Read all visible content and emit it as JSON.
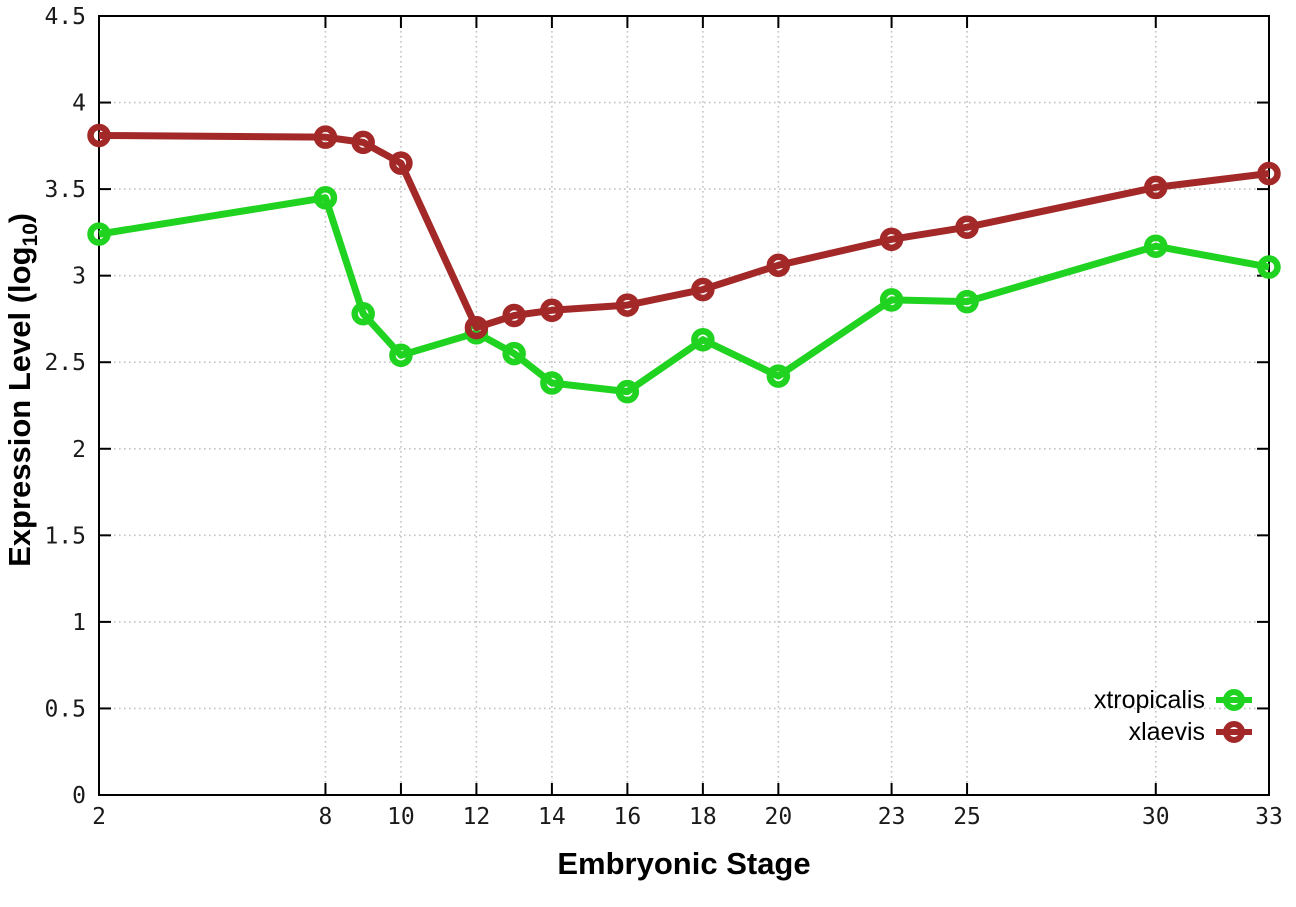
{
  "chart_data": {
    "type": "line",
    "title": "",
    "xlabel": "Embryonic Stage",
    "ylabel": {
      "main": "Expression Level (log",
      "sub": "10",
      "close": ")"
    },
    "xlim": [
      2,
      33
    ],
    "ylim": [
      0,
      4.5
    ],
    "x": [
      2,
      8,
      9,
      10,
      12,
      13,
      14,
      16,
      18,
      20,
      23,
      25,
      30,
      33
    ],
    "xticks": [
      2,
      8,
      10,
      12,
      14,
      16,
      18,
      20,
      23,
      25,
      30,
      33
    ],
    "xtick_labels": [
      "2",
      "8",
      "10",
      "12",
      "14",
      "16",
      "18",
      "20",
      "23",
      "25",
      "30",
      "33"
    ],
    "yticks": [
      0,
      0.5,
      1,
      1.5,
      2,
      2.5,
      3,
      3.5,
      4,
      4.5
    ],
    "ytick_labels": [
      "0",
      "0.5",
      "1",
      "1.5",
      "2",
      "2.5",
      "3",
      "3.5",
      "4",
      "4.5"
    ],
    "grid": true,
    "grid_style": "dotted",
    "legend_position": "bottom-right",
    "marker": "open-circle",
    "series": [
      {
        "name": "xtropicalis",
        "color": "#20d320",
        "values": [
          3.24,
          3.45,
          2.78,
          2.54,
          2.67,
          2.55,
          2.38,
          2.33,
          2.63,
          2.42,
          2.86,
          2.85,
          3.17,
          3.05
        ]
      },
      {
        "name": "xlaevis",
        "color": "#a32828",
        "values": [
          3.81,
          3.8,
          3.77,
          3.65,
          2.7,
          2.77,
          2.8,
          2.83,
          2.92,
          3.06,
          3.21,
          3.28,
          3.51,
          3.59
        ]
      }
    ],
    "colors": {
      "axis": "#000000",
      "grid": "#c3c3c3",
      "tick_label": "#1a1a1a",
      "background": "#ffffff"
    }
  }
}
